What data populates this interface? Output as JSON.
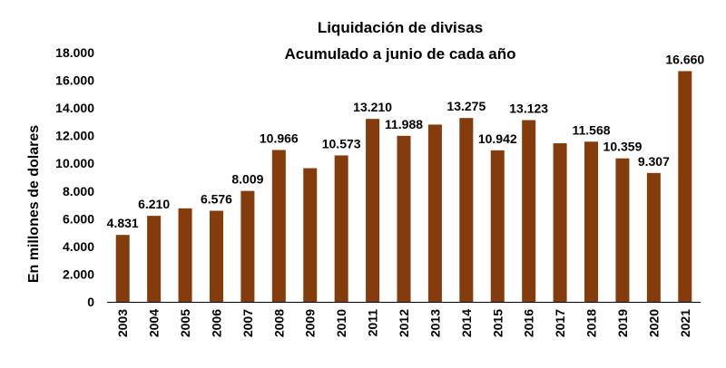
{
  "chart_data": {
    "type": "bar",
    "title": "Liquidación de divisas",
    "subtitle": "Acumulado a junio de cada año",
    "xlabel": "",
    "ylabel": "En millones de dolares",
    "ylim": [
      0,
      18000
    ],
    "yticks": [
      0,
      2000,
      4000,
      6000,
      8000,
      10000,
      12000,
      14000,
      16000,
      18000
    ],
    "ytick_labels": [
      "0",
      "2.000",
      "4.000",
      "6.000",
      "8.000",
      "10.000",
      "12.000",
      "14.000",
      "16.000",
      "18.000"
    ],
    "bar_color": "#843C0C",
    "categories": [
      "2003",
      "2004",
      "2005",
      "2006",
      "2007",
      "2008",
      "2009",
      "2010",
      "2011",
      "2012",
      "2013",
      "2014",
      "2015",
      "2016",
      "2017",
      "2018",
      "2019",
      "2020",
      "2021"
    ],
    "values": [
      4831,
      6210,
      6750,
      6576,
      8009,
      10966,
      9650,
      10573,
      13210,
      11988,
      12800,
      13275,
      10942,
      13123,
      11450,
      11568,
      10359,
      9307,
      16660
    ],
    "data_labels": [
      "4.831",
      "6.210",
      "",
      "6.576",
      "8.009",
      "10.966",
      "",
      "10.573",
      "13.210",
      "11.988",
      "",
      "13.275",
      "10.942",
      "13.123",
      "",
      "11.568",
      "10.359",
      "9.307",
      "16.660"
    ]
  }
}
